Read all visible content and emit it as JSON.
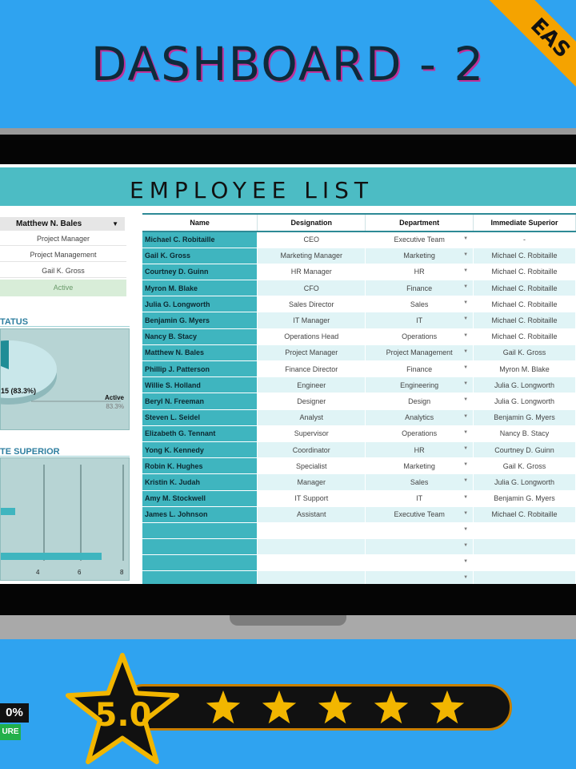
{
  "banner": {
    "title": "DASHBOARD - 2",
    "corner": "EAS"
  },
  "sheet": {
    "title": "EMPLOYEE LIST"
  },
  "profile": {
    "name": "Matthew N. Bales",
    "designation": "Project Manager",
    "department": "Project Management",
    "superior": "Gail K. Gross",
    "status": "Active"
  },
  "status_panel": {
    "heading": "TATUS",
    "slice_label": "15 (83.3%)",
    "legend_label": "Active",
    "legend_value": "83.3%"
  },
  "superior_panel": {
    "heading": "TE SUPERIOR",
    "ticks": [
      "4",
      "6",
      "8"
    ]
  },
  "table": {
    "headers": [
      "Name",
      "Designation",
      "Department",
      "Immediate Superior"
    ],
    "rows": [
      [
        "Michael C. Robitaille",
        "CEO",
        "Executive Team",
        "-"
      ],
      [
        "Gail K. Gross",
        "Marketing Manager",
        "Marketing",
        "Michael C. Robitaille"
      ],
      [
        "Courtney D. Guinn",
        "HR Manager",
        "HR",
        "Michael C. Robitaille"
      ],
      [
        "Myron M. Blake",
        "CFO",
        "Finance",
        "Michael C. Robitaille"
      ],
      [
        "Julia G. Longworth",
        "Sales Director",
        "Sales",
        "Michael C. Robitaille"
      ],
      [
        "Benjamin G. Myers",
        "IT Manager",
        "IT",
        "Michael C. Robitaille"
      ],
      [
        "Nancy B. Stacy",
        "Operations Head",
        "Operations",
        "Michael C. Robitaille"
      ],
      [
        "Matthew N. Bales",
        "Project Manager",
        "Project Management",
        "Gail K. Gross"
      ],
      [
        "Phillip J. Patterson",
        "Finance Director",
        "Finance",
        "Myron M. Blake"
      ],
      [
        "Willie S. Holland",
        "Engineer",
        "Engineering",
        "Julia G. Longworth"
      ],
      [
        "Beryl N. Freeman",
        "Designer",
        "Design",
        "Julia G. Longworth"
      ],
      [
        "Steven L. Seidel",
        "Analyst",
        "Analytics",
        "Benjamin G. Myers"
      ],
      [
        "Elizabeth G. Tennant",
        "Supervisor",
        "Operations",
        "Nancy B. Stacy"
      ],
      [
        "Yong K. Kennedy",
        "Coordinator",
        "HR",
        "Courtney D. Guinn"
      ],
      [
        "Robin K. Hughes",
        "Specialist",
        "Marketing",
        "Gail K. Gross"
      ],
      [
        "Kristin K. Judah",
        "Manager",
        "Sales",
        "Julia G. Longworth"
      ],
      [
        "Amy M. Stockwell",
        "IT Support",
        "IT",
        "Benjamin G. Myers"
      ],
      [
        "James L. Johnson",
        "Assistant",
        "Executive Team",
        "Michael C. Robitaille"
      ],
      [
        "",
        "",
        "",
        ""
      ],
      [
        "",
        "",
        "",
        ""
      ],
      [
        "",
        "",
        "",
        ""
      ],
      [
        "",
        "",
        "",
        ""
      ]
    ]
  },
  "rating": {
    "score": "5.0",
    "stars": 5,
    "badge_pct": "0%",
    "badge_pure": "URE"
  },
  "colors": {
    "accent": "#4cbcc4",
    "background": "#2fa3f0",
    "star": "#f2b600"
  }
}
